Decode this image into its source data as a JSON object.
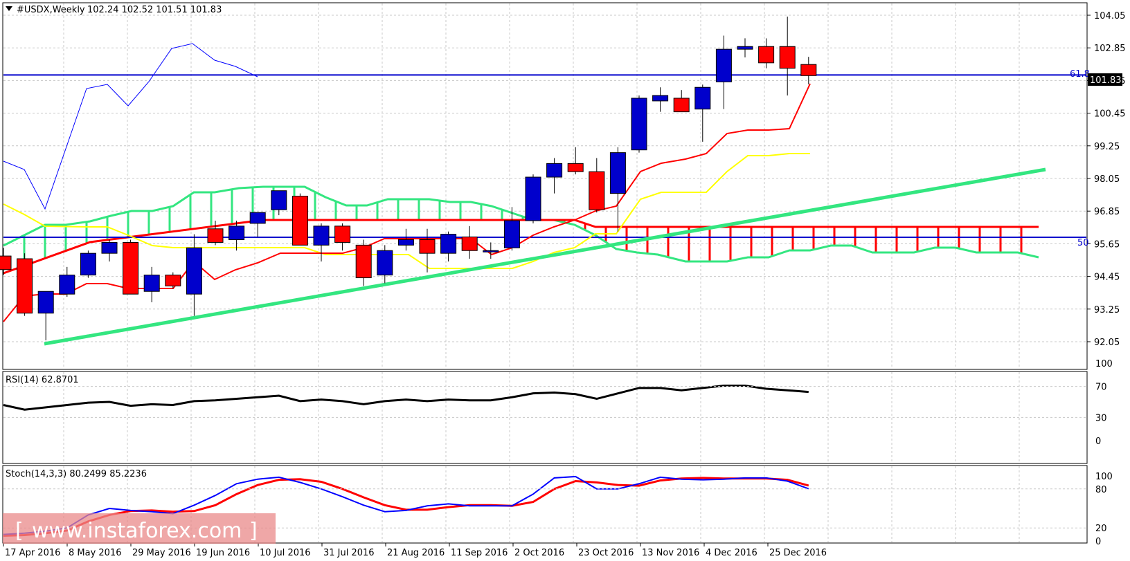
{
  "header": {
    "title": "#USDX,Weekly",
    "ohlc": "102.24 102.52 101.51 101.83",
    "menu_icon": "triangle-down-icon"
  },
  "price_badge": "101.83",
  "fib_labels": {
    "level_618": "61.8",
    "level_50": "50"
  },
  "rsi": {
    "label": "RSI(14) 62.8701",
    "levels": [
      "100",
      "70",
      "30",
      "0"
    ]
  },
  "stoch": {
    "label": "Stoch(14,3,3) 80.2499 85.2236",
    "levels": [
      "100",
      "80",
      "20",
      "0"
    ]
  },
  "watermark": "www.instaforex.com",
  "colors": {
    "bull": "#0000cc",
    "bear": "#ff0000",
    "grid": "#c8c8c8",
    "cloud_green": "#33e680",
    "cloud_red": "#ff0000",
    "kijun": "#ffff00",
    "tenkan": "#ff0000",
    "chikou": "#0000ff",
    "rsi": "#000000",
    "stoch_main": "#0000ff",
    "stoch_signal": "#ff0000"
  },
  "chart_data": {
    "type": "candlestick",
    "price_axis": [
      "104.05",
      "102.85",
      "101.65",
      "100.45",
      "99.25",
      "98.05",
      "96.85",
      "95.65",
      "94.45",
      "93.25",
      "92.05"
    ],
    "date_labels": [
      "17 Apr 2016",
      "8 May 2016",
      "29 May 2016",
      "19 Jun 2016",
      "10 Jul 2016",
      "31 Jul 2016",
      "21 Aug 2016",
      "11 Sep 2016",
      "2 Oct 2016",
      "23 Oct 2016",
      "13 Nov 2016",
      "4 Dec 2016",
      "25 Dec 2016"
    ],
    "candles": [
      [
        95.2,
        95.5,
        94.5,
        94.7
      ],
      [
        95.1,
        95.3,
        93.0,
        93.1
      ],
      [
        93.1,
        93.9,
        92.1,
        93.9
      ],
      [
        93.8,
        94.8,
        93.7,
        94.5
      ],
      [
        94.5,
        95.4,
        94.4,
        95.3
      ],
      [
        95.3,
        95.8,
        95.0,
        95.7
      ],
      [
        95.7,
        95.8,
        93.8,
        93.8
      ],
      [
        93.9,
        94.8,
        93.5,
        94.5
      ],
      [
        94.5,
        94.6,
        94.0,
        94.1
      ],
      [
        93.8,
        96.0,
        93.0,
        95.5
      ],
      [
        96.2,
        96.5,
        95.6,
        95.7
      ],
      [
        95.8,
        96.5,
        95.4,
        96.3
      ],
      [
        96.4,
        96.8,
        95.9,
        96.8
      ],
      [
        96.9,
        97.6,
        96.7,
        97.6
      ],
      [
        97.4,
        97.5,
        95.6,
        95.6
      ],
      [
        95.6,
        96.4,
        95.0,
        96.3
      ],
      [
        96.3,
        96.4,
        95.4,
        95.7
      ],
      [
        95.6,
        95.8,
        94.1,
        94.4
      ],
      [
        94.5,
        95.6,
        94.2,
        95.4
      ],
      [
        95.6,
        96.2,
        95.4,
        95.8
      ],
      [
        95.8,
        96.2,
        94.6,
        95.3
      ],
      [
        95.3,
        96.1,
        95.0,
        96.0
      ],
      [
        95.9,
        96.3,
        95.1,
        95.4
      ],
      [
        95.4,
        95.7,
        95.1,
        95.4
      ],
      [
        95.5,
        97.0,
        95.4,
        96.5
      ],
      [
        96.5,
        98.2,
        96.4,
        98.1
      ],
      [
        98.1,
        98.8,
        97.5,
        98.6
      ],
      [
        98.6,
        99.2,
        98.2,
        98.3
      ],
      [
        98.3,
        98.8,
        96.8,
        96.9
      ],
      [
        97.5,
        99.2,
        96.1,
        99.0
      ],
      [
        99.1,
        101.1,
        99.0,
        101.0
      ],
      [
        100.9,
        101.4,
        100.5,
        101.1
      ],
      [
        101.0,
        101.3,
        100.5,
        100.5
      ],
      [
        100.6,
        101.5,
        99.4,
        101.4
      ],
      [
        101.6,
        103.3,
        100.6,
        102.8
      ],
      [
        102.8,
        103.2,
        102.5,
        102.9
      ],
      [
        102.9,
        103.2,
        102.1,
        102.3
      ],
      [
        102.9,
        104.0,
        101.1,
        102.1
      ],
      [
        102.24,
        102.52,
        101.51,
        101.83
      ]
    ],
    "series": [
      {
        "name": "Tenkan-sen",
        "values": []
      },
      {
        "name": "RSI(14)",
        "values": [
          46,
          40,
          43,
          46,
          49,
          50,
          45,
          47,
          46,
          51,
          52,
          54,
          56,
          58,
          51,
          53,
          51,
          47,
          51,
          53,
          51,
          53,
          52,
          52,
          56,
          61,
          62,
          60,
          54,
          61,
          68,
          68,
          65,
          68,
          71,
          71,
          67,
          65,
          62.87
        ]
      },
      {
        "name": "Stoch main",
        "values": [
          10,
          12,
          15,
          20,
          40,
          50,
          47,
          45,
          42,
          55,
          70,
          88,
          95,
          98,
          90,
          80,
          68,
          55,
          45,
          47,
          54,
          57,
          54,
          54,
          54,
          72,
          97,
          99,
          80,
          80,
          88,
          98,
          95,
          94,
          95,
          97,
          97,
          92,
          80.25
        ]
      },
      {
        "name": "Stoch signal",
        "values": [
          8,
          9,
          12,
          16,
          30,
          40,
          46,
          47,
          45,
          46,
          55,
          72,
          86,
          94,
          95,
          91,
          80,
          67,
          55,
          48,
          48,
          52,
          55,
          55,
          54,
          60,
          80,
          92,
          90,
          86,
          85,
          93,
          96,
          97,
          96,
          96,
          96,
          94,
          85.22
        ]
      }
    ],
    "rsi_ylim": [
      0,
      100
    ],
    "stoch_ylim": [
      0,
      100
    ],
    "grid": true
  }
}
